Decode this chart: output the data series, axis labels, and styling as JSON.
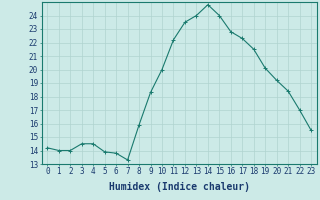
{
  "x": [
    0,
    1,
    2,
    3,
    4,
    5,
    6,
    7,
    8,
    9,
    10,
    11,
    12,
    13,
    14,
    15,
    16,
    17,
    18,
    19,
    20,
    21,
    22,
    23
  ],
  "y": [
    14.2,
    14.0,
    14.0,
    14.5,
    14.5,
    13.9,
    13.8,
    13.3,
    15.9,
    18.3,
    20.0,
    22.2,
    23.5,
    24.0,
    24.8,
    24.0,
    22.8,
    22.3,
    21.5,
    20.1,
    19.2,
    18.4,
    17.0,
    15.5
  ],
  "xlabel": "Humidex (Indice chaleur)",
  "xlim": [
    -0.5,
    23.5
  ],
  "ylim": [
    13,
    25
  ],
  "yticks": [
    13,
    14,
    15,
    16,
    17,
    18,
    19,
    20,
    21,
    22,
    23,
    24
  ],
  "xticks": [
    0,
    1,
    2,
    3,
    4,
    5,
    6,
    7,
    8,
    9,
    10,
    11,
    12,
    13,
    14,
    15,
    16,
    17,
    18,
    19,
    20,
    21,
    22,
    23
  ],
  "line_color": "#1a7a6e",
  "marker": "+",
  "bg_color": "#cceae7",
  "grid_color": "#b0d4d0",
  "label_color": "#1a3a6e",
  "xlabel_fontsize": 7,
  "tick_fontsize": 5.5
}
